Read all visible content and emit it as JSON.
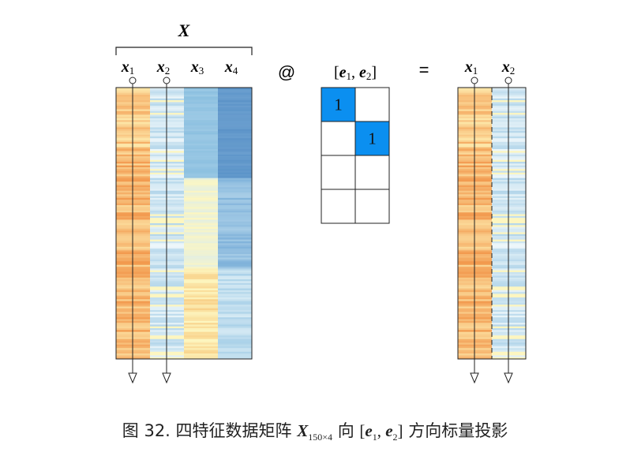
{
  "matrix": {
    "label": "X",
    "columns": [
      {
        "name": "x",
        "sub": "1"
      },
      {
        "name": "x",
        "sub": "2"
      },
      {
        "name": "x",
        "sub": "3"
      },
      {
        "name": "x",
        "sub": "4"
      }
    ]
  },
  "operator": "@",
  "equals": "=",
  "projection": {
    "label_open": "[",
    "e1": "e",
    "e1_sub": "1",
    "sep": ", ",
    "e2": "e",
    "e2_sub": "2",
    "label_close": "]",
    "cells": [
      [
        "1",
        ""
      ],
      [
        "",
        "1"
      ],
      [
        "",
        ""
      ],
      [
        "",
        ""
      ]
    ],
    "highlight_color": "#0b8ff0"
  },
  "result": {
    "columns": [
      {
        "name": "x",
        "sub": "1"
      },
      {
        "name": "x",
        "sub": "2"
      }
    ]
  },
  "caption": {
    "prefix": "图 32. 四特征数据矩阵 ",
    "matrix": "X",
    "matrix_sub": "150×4",
    "mid": " 向 ",
    "bracket_open": "[",
    "e1": "e",
    "e1_sub": "1",
    "sep": ", ",
    "e2": "e",
    "e2_sub": "2",
    "bracket_close": "]",
    "suffix": " 方向标量投影"
  },
  "colors": {
    "orange_hi": "#f08a3c",
    "orange_lo": "#fde6a8",
    "light_blue": "#d7ecf5",
    "mid_blue": "#8cc0e0",
    "dark_blue": "#5b93c8",
    "pale_yellow": "#fdf6c0"
  }
}
